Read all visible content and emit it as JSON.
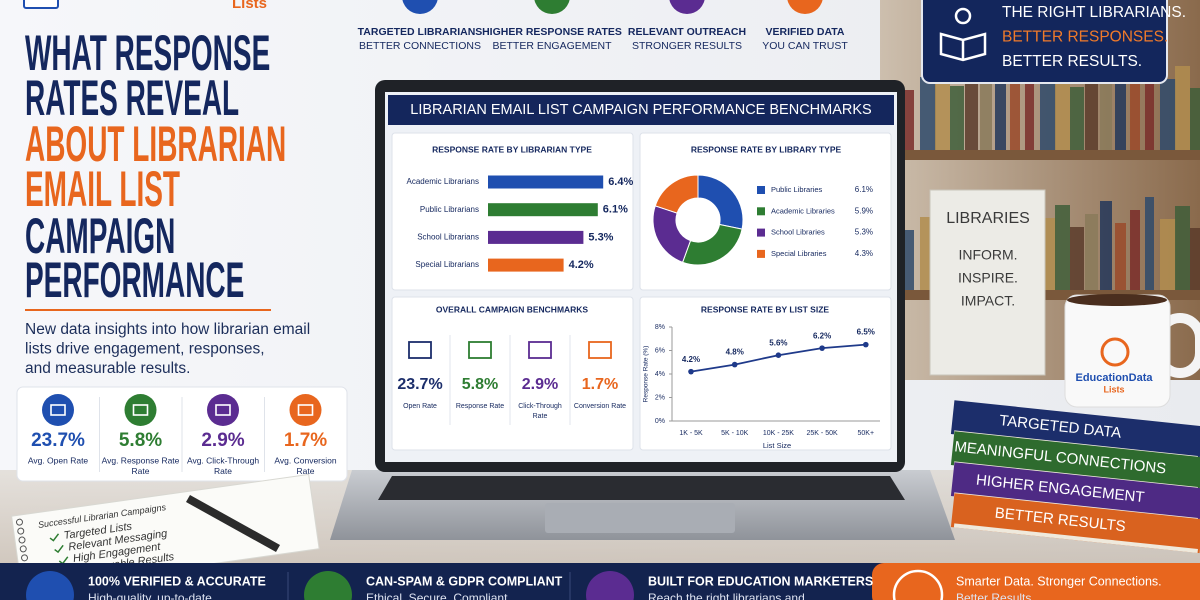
{
  "logo": {
    "text": "Lists"
  },
  "features": [
    {
      "line1": "TARGETED LIBRARIANS",
      "line2": "BETTER CONNECTIONS"
    },
    {
      "line1": "HIGHER RESPONSE RATES",
      "line2": "BETTER ENGAGEMENT"
    },
    {
      "line1": "RELEVANT OUTREACH",
      "line2": "STRONGER RESULTS"
    },
    {
      "line1": "VERIFIED DATA",
      "line2": "YOU CAN TRUST"
    }
  ],
  "badge": {
    "lines": [
      "THE RIGHT LIBRARIANS.",
      "BETTER RESPONSES.",
      "BETTER RESULTS."
    ],
    "colors": [
      "#ffffff",
      "#f07a2a",
      "#ffffff"
    ]
  },
  "headline": {
    "lines": [
      "WHAT RESPONSE",
      "RATES REVEAL",
      "ABOUT LIBRARIAN",
      "EMAIL LIST",
      "CAMPAIGN",
      "PERFORMANCE"
    ],
    "colors": [
      "#14275e",
      "#14275e",
      "#e8661e",
      "#e8661e",
      "#14275e",
      "#14275e"
    ]
  },
  "subtitle": {
    "lines": [
      "New data insights into how librarian email",
      "lists drive engagement, responses,",
      "and measurable results."
    ]
  },
  "stats": [
    {
      "value": "23.7%",
      "label": [
        "Avg. Open Rate"
      ],
      "color": "#1f4fb0"
    },
    {
      "value": "5.8%",
      "label": [
        "Avg. Response Rate",
        "Rate"
      ],
      "color": "#2e7d32"
    },
    {
      "value": "2.9%",
      "label": [
        "Avg. Click-Through",
        "Rate"
      ],
      "color": "#5b2c91"
    },
    {
      "value": "1.7%",
      "label": [
        "Avg. Conversion",
        "Rate"
      ],
      "color": "#e8661e"
    }
  ],
  "notebook": {
    "title": "Successful Librarian Campaigns",
    "items": [
      "Targeted Lists",
      "Relevant Messaging",
      "High Engagement",
      "Measurable Results"
    ]
  },
  "dashboard_title": "LIBRARIAN EMAIL LIST CAMPAIGN PERFORMANCE BENCHMARKS",
  "chart_data": [
    {
      "type": "bar",
      "orientation": "horizontal",
      "title": "RESPONSE RATE BY LIBRARIAN TYPE",
      "categories": [
        "Academic Librarians",
        "Public Librarians",
        "School Librarians",
        "Special Librarians"
      ],
      "values": [
        6.4,
        6.1,
        5.3,
        4.2
      ],
      "value_labels": [
        "6.4%",
        "6.1%",
        "5.3%",
        "4.2%"
      ],
      "colors": [
        "#1f4fb0",
        "#2e7d32",
        "#5b2c91",
        "#e8661e"
      ]
    },
    {
      "type": "pie",
      "donut": true,
      "title": "RESPONSE RATE BY LIBRARY TYPE",
      "categories": [
        "Public Libraries",
        "Academic Libraries",
        "School Libraries",
        "Special Libraries"
      ],
      "values": [
        6.1,
        5.9,
        5.3,
        4.3
      ],
      "value_labels": [
        "6.1%",
        "5.9%",
        "5.3%",
        "4.3%"
      ],
      "colors": [
        "#1f4fb0",
        "#2e7d32",
        "#5b2c91",
        "#e8661e"
      ]
    },
    {
      "type": "line",
      "title": "RESPONSE RATE BY LIST SIZE",
      "x_label": "List Size",
      "y_label": "Response Rate (%)",
      "categories": [
        "1K - 5K",
        "5K - 10K",
        "10K - 25K",
        "25K - 50K",
        "50K+"
      ],
      "values": [
        4.2,
        4.8,
        5.6,
        6.2,
        6.5
      ],
      "value_labels": [
        "4.2%",
        "4.8%",
        "5.6%",
        "6.2%",
        "6.5%"
      ],
      "color": "#1f3a8a",
      "ylim": [
        0,
        8
      ],
      "yticks": [
        {
          "value": 0,
          "label": "0%"
        },
        {
          "value": 2,
          "label": "2%"
        },
        {
          "value": 4,
          "label": "4%"
        },
        {
          "value": 6,
          "label": "6%"
        },
        {
          "value": 8,
          "label": "8%"
        }
      ]
    }
  ],
  "benchmarks": {
    "title": "OVERALL CAMPAIGN BENCHMARKS",
    "items": [
      {
        "value": "23.7%",
        "label": [
          "Open Rate"
        ],
        "color": "#1c2e6b"
      },
      {
        "value": "5.8%",
        "label": [
          "Response Rate"
        ],
        "color": "#2e7d32"
      },
      {
        "value": "2.9%",
        "label": [
          "Click-Through",
          "Rate"
        ],
        "color": "#5b2c91"
      },
      {
        "value": "1.7%",
        "label": [
          "Conversion Rate"
        ],
        "color": "#e8661e"
      }
    ]
  },
  "shelf_sign": {
    "lines": [
      "LIBRARIES",
      "INFORM.",
      "INSPIRE.",
      "IMPACT."
    ]
  },
  "mug": {
    "lines": [
      "EducationData",
      "Lists"
    ]
  },
  "books": [
    {
      "text": "TARGETED DATA",
      "color": "#1c2e6b"
    },
    {
      "text": "MEANINGFUL CONNECTIONS",
      "color": "#2e6b2e"
    },
    {
      "text": "HIGHER ENGAGEMENT",
      "color": "#4e2a84"
    },
    {
      "text": "BETTER RESULTS",
      "color": "#d9621f"
    }
  ],
  "footer": [
    {
      "title": "100% VERIFIED & ACCURATE",
      "text": "High-quality, up-to-date"
    },
    {
      "title": "CAN-SPAM & GDPR COMPLIANT",
      "text": "Ethical. Secure. Compliant."
    },
    {
      "title": "BUILT FOR EDUCATION MARKETERS",
      "text": "Reach the right librarians and"
    },
    {
      "title": "Smarter Data. Stronger Connections.",
      "text": "Better Results."
    }
  ]
}
